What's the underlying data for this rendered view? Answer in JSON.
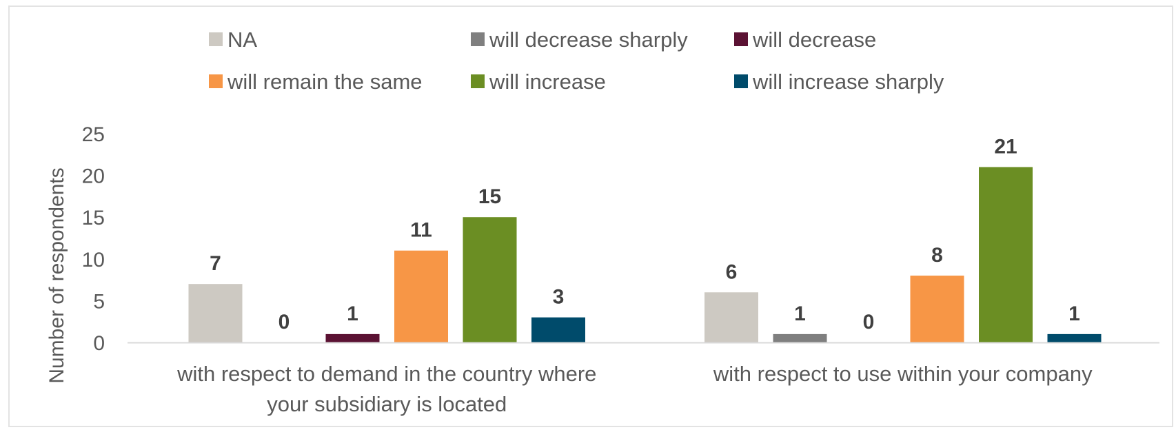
{
  "chart_data": {
    "type": "bar",
    "ylabel": "Number of respondents",
    "ylim": [
      0,
      25
    ],
    "yticks": [
      0,
      5,
      10,
      15,
      20,
      25
    ],
    "grid": false,
    "legend_position": "top",
    "categories": [
      [
        "with respect to demand in the country where",
        "your subsidiary is located"
      ],
      [
        "with respect to use within your company"
      ]
    ],
    "series": [
      {
        "name": "NA",
        "color": "#cdc9c2",
        "values": [
          7,
          6
        ]
      },
      {
        "name": "will decrease sharply",
        "color": "#7f7f7f",
        "values": [
          0,
          1
        ]
      },
      {
        "name": "will decrease",
        "color": "#5b1233",
        "values": [
          1,
          0
        ]
      },
      {
        "name": "will remain the same",
        "color": "#f79646",
        "values": [
          11,
          8
        ]
      },
      {
        "name": "will increase",
        "color": "#6b8e23",
        "values": [
          15,
          21
        ]
      },
      {
        "name": "will increase sharply",
        "color": "#004b6b",
        "values": [
          3,
          1
        ]
      }
    ]
  }
}
